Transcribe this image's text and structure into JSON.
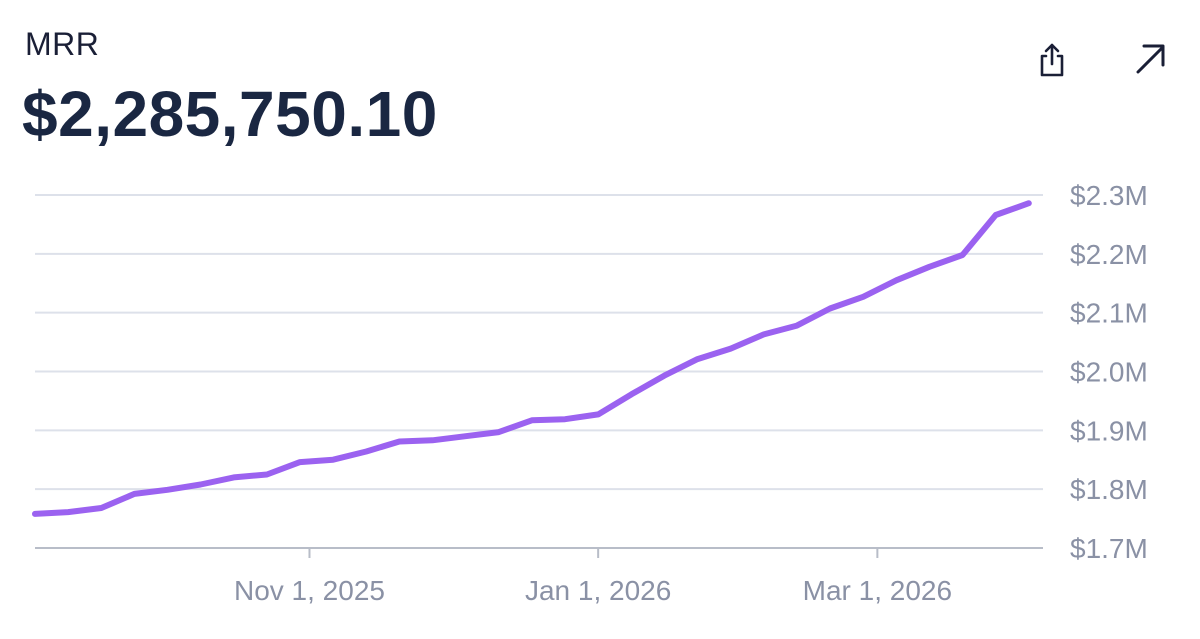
{
  "metric": {
    "label": "MRR",
    "value": "$2,285,750.10"
  },
  "actions": {
    "share_icon": "share-icon",
    "expand_icon": "arrow-up-right-icon"
  },
  "colors": {
    "line": "#9b62f0",
    "grid": "#dde1ea",
    "axis": "#b8bdc8",
    "text": "#1a2742",
    "tick": "#8a91a5"
  },
  "chart_data": {
    "type": "line",
    "title": "",
    "xlabel": "",
    "ylabel": "",
    "ylim": [
      1.7,
      2.3
    ],
    "xlim": [
      "2025-09-04",
      "2026-04-05"
    ],
    "y_ticks": [
      {
        "value": 2.3,
        "label": "$2.3M"
      },
      {
        "value": 2.2,
        "label": "$2.2M"
      },
      {
        "value": 2.1,
        "label": "$2.1M"
      },
      {
        "value": 2.0,
        "label": "$2.0M"
      },
      {
        "value": 1.9,
        "label": "$1.9M"
      },
      {
        "value": 1.8,
        "label": "$1.8M"
      },
      {
        "value": 1.7,
        "label": "$1.7M"
      }
    ],
    "x_ticks": [
      {
        "value": "2025-11-01",
        "label": "Nov 1, 2025"
      },
      {
        "value": "2026-01-01",
        "label": "Jan 1, 2026"
      },
      {
        "value": "2026-03-01",
        "label": "Mar 1, 2026"
      }
    ],
    "grid": true,
    "series": [
      {
        "points": [
          {
            "x": "2025-09-04",
            "y": 1.758
          },
          {
            "x": "2025-09-11",
            "y": 1.761
          },
          {
            "x": "2025-09-18",
            "y": 1.768
          },
          {
            "x": "2025-09-25",
            "y": 1.792
          },
          {
            "x": "2025-10-02",
            "y": 1.799
          },
          {
            "x": "2025-10-09",
            "y": 1.808
          },
          {
            "x": "2025-10-16",
            "y": 1.82
          },
          {
            "x": "2025-10-23",
            "y": 1.825
          },
          {
            "x": "2025-10-30",
            "y": 1.846
          },
          {
            "x": "2025-11-06",
            "y": 1.85
          },
          {
            "x": "2025-11-13",
            "y": 1.864
          },
          {
            "x": "2025-11-20",
            "y": 1.881
          },
          {
            "x": "2025-11-27",
            "y": 1.883
          },
          {
            "x": "2025-12-04",
            "y": 1.89
          },
          {
            "x": "2025-12-11",
            "y": 1.897
          },
          {
            "x": "2025-12-18",
            "y": 1.917
          },
          {
            "x": "2025-12-25",
            "y": 1.919
          },
          {
            "x": "2026-01-01",
            "y": 1.927
          },
          {
            "x": "2026-01-08",
            "y": 1.961
          },
          {
            "x": "2026-01-15",
            "y": 1.993
          },
          {
            "x": "2026-01-22",
            "y": 2.021
          },
          {
            "x": "2026-01-29",
            "y": 2.039
          },
          {
            "x": "2026-02-05",
            "y": 2.063
          },
          {
            "x": "2026-02-12",
            "y": 2.078
          },
          {
            "x": "2026-02-19",
            "y": 2.107
          },
          {
            "x": "2026-02-26",
            "y": 2.127
          },
          {
            "x": "2026-03-05",
            "y": 2.155
          },
          {
            "x": "2026-03-12",
            "y": 2.178
          },
          {
            "x": "2026-03-19",
            "y": 2.198
          },
          {
            "x": "2026-03-26",
            "y": 2.266
          },
          {
            "x": "2026-04-02",
            "y": 2.286
          }
        ]
      }
    ]
  }
}
